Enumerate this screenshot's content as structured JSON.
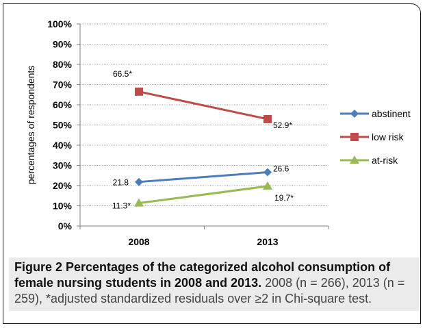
{
  "chart_data": {
    "type": "line",
    "categories": [
      "2008",
      "2013"
    ],
    "series": [
      {
        "name": "abstinent",
        "values": [
          21.8,
          26.6
        ],
        "labels": [
          "21.8",
          "26.6"
        ],
        "color": "#4a7ebb",
        "marker": "diamond"
      },
      {
        "name": "low risk",
        "values": [
          66.5,
          52.9
        ],
        "labels": [
          "66.5*",
          "52.9*"
        ],
        "color": "#be4b48",
        "marker": "square"
      },
      {
        "name": "at-risk",
        "values": [
          11.3,
          19.7
        ],
        "labels": [
          "11.3*",
          "19.7*"
        ],
        "color": "#98b954",
        "marker": "triangle"
      }
    ],
    "ylabel": "percentages of respondents",
    "xlabel": "",
    "ylim": [
      0,
      100
    ],
    "yticks": [
      "0%",
      "10%",
      "20%",
      "30%",
      "40%",
      "50%",
      "60%",
      "70%",
      "80%",
      "90%",
      "100%"
    ],
    "grid": true,
    "legend": "right"
  },
  "caption": {
    "lead": "Figure 2 Percentages of the categorized alcohol consumption of female nursing students in 2008 and 2013.",
    "rest": " 2008 (n = 266), 2013 (n = 259), *adjusted standardized residuals over ≥2 in Chi-square test."
  }
}
